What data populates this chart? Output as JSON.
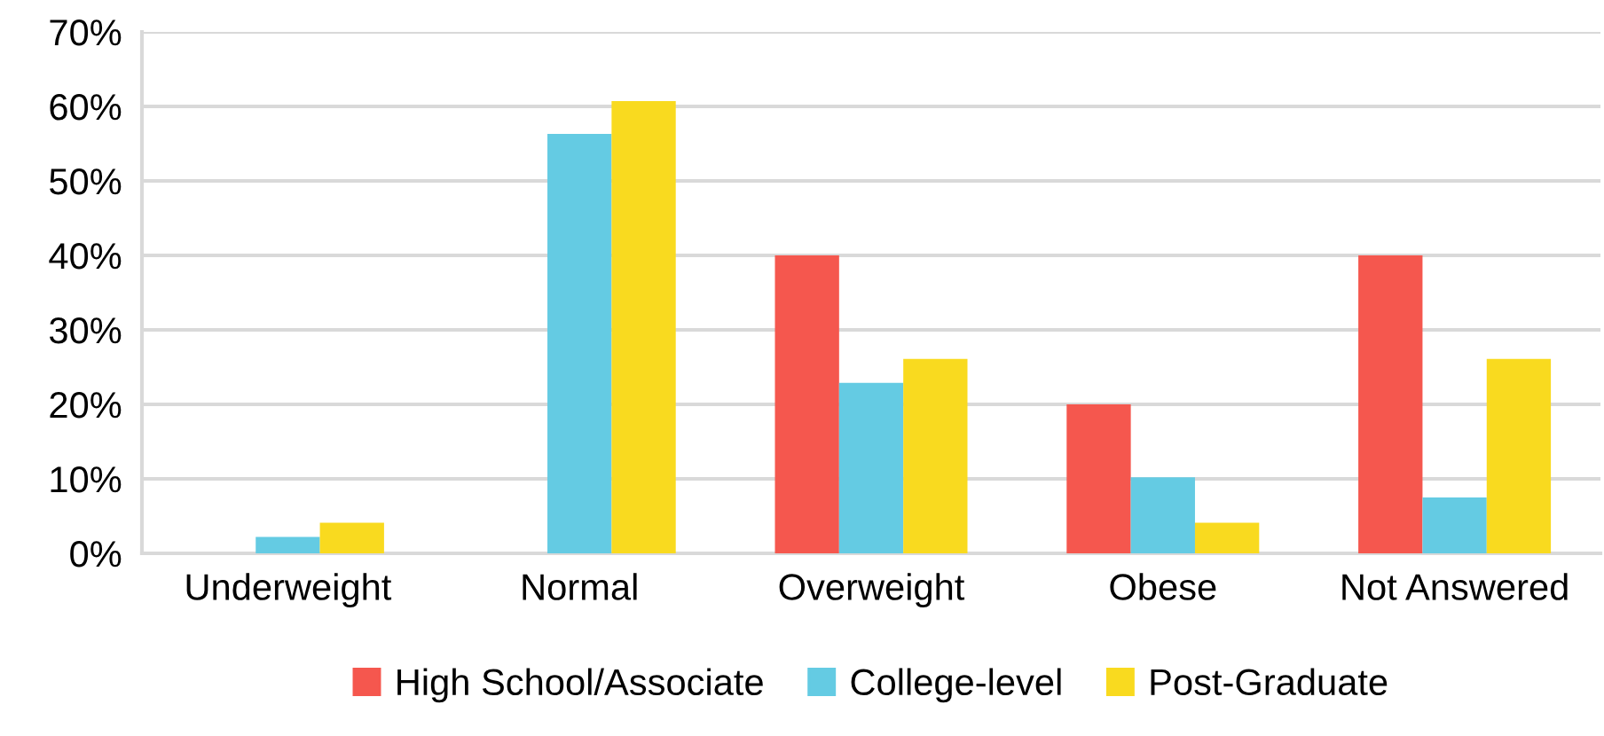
{
  "chart_data": {
    "type": "bar",
    "categories": [
      "Underweight",
      "Normal",
      "Overweight",
      "Obese",
      "Not Answered"
    ],
    "series": [
      {
        "name": "High School/Associate",
        "color": "#f5574e",
        "values": [
          0,
          0,
          40,
          20,
          40
        ]
      },
      {
        "name": "College-level",
        "color": "#64cbe3",
        "values": [
          2.2,
          56.3,
          22.9,
          10.2,
          7.5
        ]
      },
      {
        "name": "Post-Graduate",
        "color": "#f9da1f",
        "values": [
          4.1,
          60.7,
          26.1,
          4.1,
          26.1
        ]
      }
    ],
    "ylim": [
      0,
      70
    ],
    "yticks": [
      {
        "value": 0,
        "label": "0%"
      },
      {
        "value": 10,
        "label": "10%"
      },
      {
        "value": 20,
        "label": "20%"
      },
      {
        "value": 30,
        "label": "30%"
      },
      {
        "value": 40,
        "label": "40%"
      },
      {
        "value": 50,
        "label": "50%"
      },
      {
        "value": 60,
        "label": "60%"
      },
      {
        "value": 70,
        "label": "70%"
      }
    ],
    "grid": "y",
    "legend": "bottom"
  }
}
